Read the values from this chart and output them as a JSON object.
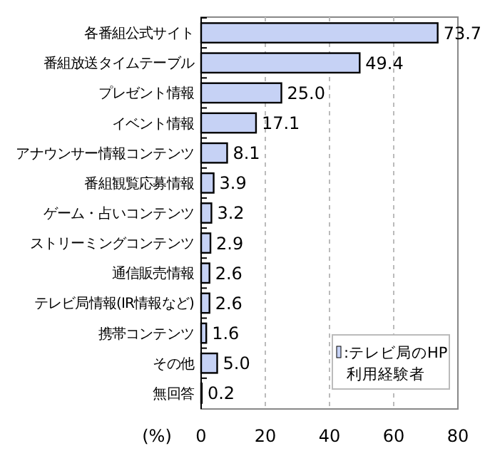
{
  "chart_data": {
    "type": "bar",
    "orientation": "horizontal",
    "categories": [
      "各番組公式サイト",
      "番組放送タイムテーブル",
      "プレゼント情報",
      "イベント情報",
      "アナウンサー情報コンテンツ",
      "番組観覧応募情報",
      "ゲーム・占いコンテンツ",
      "ストリーミングコンテンツ",
      "通信販売情報",
      "テレビ局情報(IR情報など)",
      "携帯コンテンツ",
      "その他",
      "無回答"
    ],
    "series": [
      {
        "name": ":テレビ局のHP利用経験者",
        "color": "#c6d2f5",
        "values": [
          73.7,
          49.4,
          25.0,
          17.1,
          8.1,
          3.9,
          3.2,
          2.9,
          2.6,
          2.6,
          1.6,
          5.0,
          0.2
        ]
      }
    ],
    "value_labels": [
      "73.7",
      "49.4",
      "25.0",
      "17.1",
      "8.1",
      "3.9",
      "3.2",
      "2.9",
      "2.6",
      "2.6",
      "1.6",
      "5.0",
      "0.2"
    ],
    "xlabel": "(%)",
    "xlim": [
      0,
      80
    ],
    "xticks": [
      0,
      20,
      40,
      60,
      80
    ],
    "grid": "x",
    "legend": "bottom right"
  }
}
